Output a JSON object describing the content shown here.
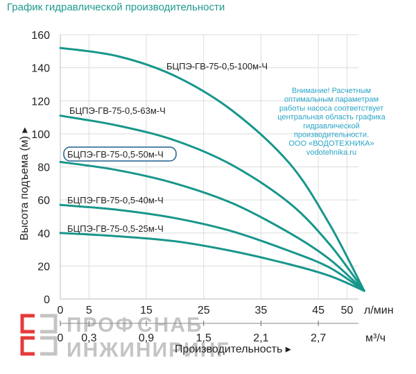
{
  "header": {
    "title": "График гидравлической производительности"
  },
  "chart_data": {
    "type": "line",
    "title": "График гидравлической производительности",
    "ylabel": "Высота подъема (м) ▸",
    "xlabel": "Производительность ▸",
    "x_ticks_lpm": [
      "0",
      "5",
      "15",
      "25",
      "35",
      "45",
      "50"
    ],
    "x_unit_lpm": "л/мин",
    "x_ticks_m3h": [
      "0",
      "0,3",
      "0,9",
      "1,5",
      "2,1",
      "2,7"
    ],
    "x_unit_m3h": "м³/ч",
    "y_ticks": [
      "0",
      "20",
      "40",
      "60",
      "80",
      "100",
      "120",
      "140",
      "160"
    ],
    "ylim": [
      0,
      160
    ],
    "xlim": [
      0,
      52
    ],
    "grid": true,
    "line_color": "#17968b",
    "series": [
      {
        "name": "БЦПЭ-ГВ-75-0,5-100м-Ч",
        "shutoff_head": 152,
        "end_flow": 53,
        "values": [
          [
            0,
            152
          ],
          [
            10,
            147
          ],
          [
            20,
            135
          ],
          [
            30,
            114
          ],
          [
            40,
            82
          ],
          [
            47,
            45
          ],
          [
            53,
            5
          ]
        ]
      },
      {
        "name": "БЦПЭ-ГВ-75-0,5-63м-Ч",
        "shutoff_head": 111,
        "end_flow": 53,
        "values": [
          [
            0,
            111
          ],
          [
            10,
            105
          ],
          [
            20,
            96
          ],
          [
            30,
            81
          ],
          [
            40,
            58
          ],
          [
            47,
            33
          ],
          [
            53,
            5
          ]
        ]
      },
      {
        "name": "БЦПЭ-ГВ-75-0,5-50м-Ч",
        "shutoff_head": 83,
        "end_flow": 53,
        "values": [
          [
            0,
            83
          ],
          [
            10,
            78
          ],
          [
            20,
            70
          ],
          [
            30,
            58
          ],
          [
            40,
            40
          ],
          [
            47,
            24
          ],
          [
            53,
            5
          ]
        ]
      },
      {
        "name": "БЦПЭ-ГВ-75-0,5-40м-Ч",
        "shutoff_head": 57,
        "end_flow": 53,
        "values": [
          [
            0,
            57
          ],
          [
            10,
            54
          ],
          [
            20,
            49
          ],
          [
            30,
            41
          ],
          [
            40,
            29
          ],
          [
            47,
            19
          ],
          [
            53,
            5
          ]
        ]
      },
      {
        "name": "БЦПЭ-ГВ-75-0,5-25м-Ч",
        "shutoff_head": 40,
        "end_flow": 53,
        "values": [
          [
            0,
            40
          ],
          [
            10,
            38
          ],
          [
            20,
            35
          ],
          [
            30,
            29
          ],
          [
            40,
            21
          ],
          [
            47,
            14
          ],
          [
            53,
            5
          ]
        ]
      }
    ],
    "highlighted_series": "БЦПЭ-ГВ-75-0,5-50м-Ч",
    "annotation": [
      "Внимание! Расчетным",
      "оптимальным параметрам",
      "работы насоса соответствует",
      "центральная область графика",
      "гидравлической",
      "производительности.",
      "ООО «ВОДОТЕХНИКА»",
      "vodotehnika.ru"
    ]
  },
  "watermark": {
    "lines": [
      "ПРОФ",
      "СНАБ",
      "ИНЖИНИРИНГ"
    ],
    "color": "#c4c4c4",
    "logo_color": "#e63a3a"
  }
}
